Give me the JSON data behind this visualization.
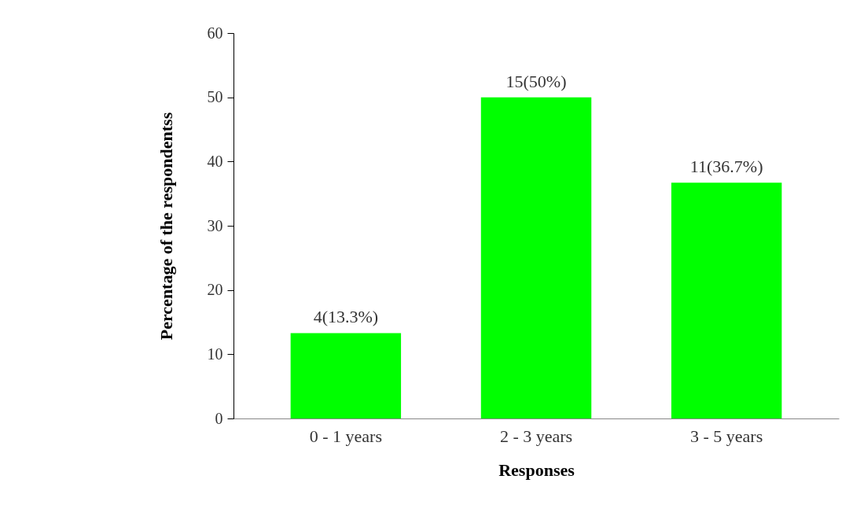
{
  "chart_data": {
    "type": "bar",
    "xlabel": "Responses",
    "ylabel": "Percentage of the respondentss",
    "categories": [
      "0 - 1 years",
      "2 - 3 years",
      "3 - 5 years"
    ],
    "values": [
      13.3,
      50,
      36.7
    ],
    "color": "#00ff00",
    "value_labels": [
      "4(13.3%)",
      "15(50%)",
      "11(36.7%)"
    ],
    "ylim": [
      0,
      60
    ],
    "yticks": [
      0,
      10,
      20,
      30,
      40,
      50,
      60
    ],
    "grid": false
  }
}
